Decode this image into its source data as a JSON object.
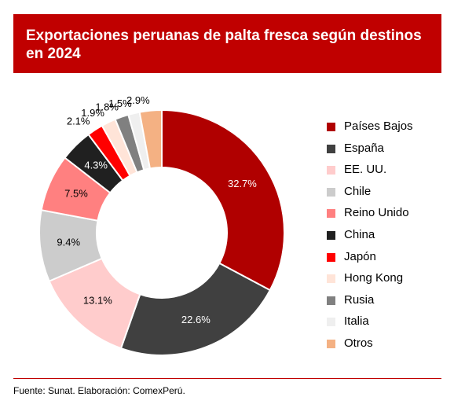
{
  "chart_data": {
    "type": "pie",
    "title": "Exportaciones peruanas de palta fresca según destinos en 2024",
    "slices": [
      {
        "name": "Países Bajos",
        "value": 32.7,
        "label": "32.7%",
        "color": "#b00000"
      },
      {
        "name": "España",
        "value": 22.6,
        "label": "22.6%",
        "color": "#404040"
      },
      {
        "name": "EE. UU.",
        "value": 13.1,
        "label": "13.1%",
        "color": "#ffcccc"
      },
      {
        "name": "Chile",
        "value": 9.4,
        "label": "9.4%",
        "color": "#cccccc"
      },
      {
        "name": "Reino Unido",
        "value": 7.5,
        "label": "7.5%",
        "color": "#ff8080"
      },
      {
        "name": "China",
        "value": 4.3,
        "label": "4.3%",
        "color": "#202020"
      },
      {
        "name": "Japón",
        "value": 2.1,
        "label": "2.1%",
        "color": "#ff0000"
      },
      {
        "name": "Hong Kong",
        "value": 1.9,
        "label": "1.9%",
        "color": "#ffe4d8"
      },
      {
        "name": "Rusia",
        "value": 1.8,
        "label": "1.8%",
        "color": "#808080"
      },
      {
        "name": "Italia",
        "value": 1.5,
        "label": "1.5%",
        "color": "#efefef"
      },
      {
        "name": "Otros",
        "value": 2.9,
        "label": "2.9%",
        "color": "#f4b183"
      }
    ],
    "legend_position": "right",
    "source": "Fuente: Sunat. Elaboración: ComexPerú."
  }
}
